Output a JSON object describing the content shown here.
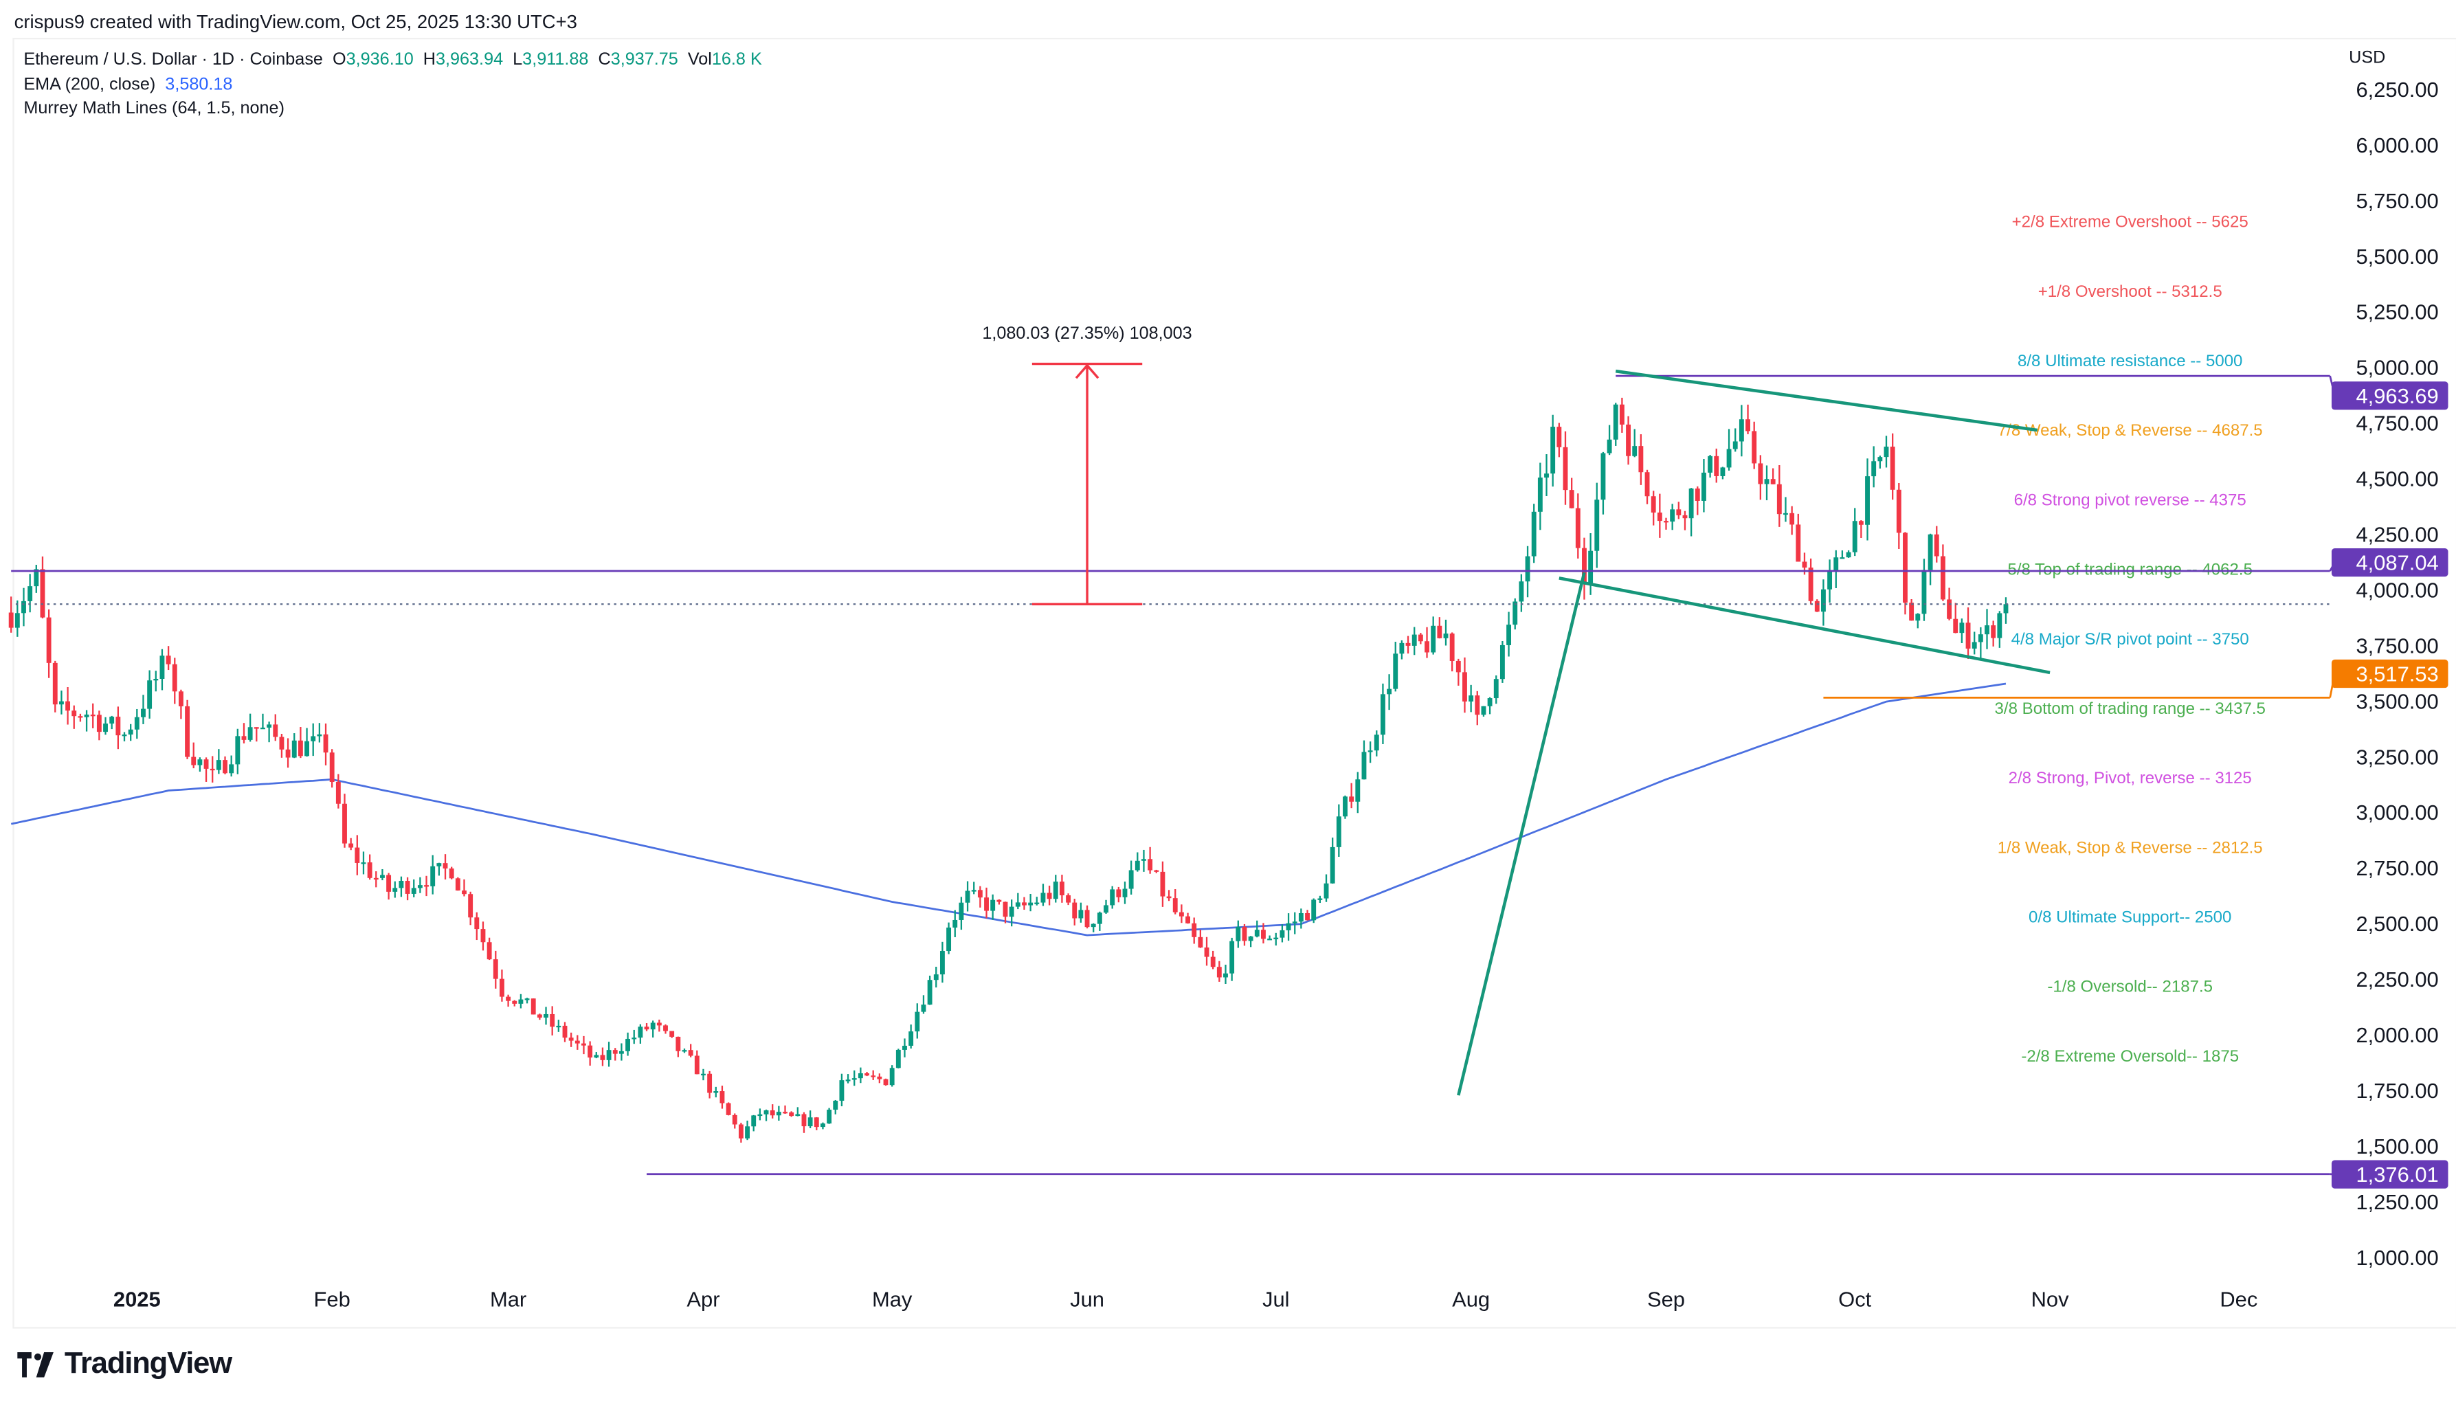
{
  "header": {
    "credit": "crispus9 created with TradingView.com, Oct 25, 2025 13:30 UTC+3",
    "symbol": "Ethereum / U.S. Dollar · 1D · Coinbase",
    "ohlcv": {
      "o_label": "O",
      "o": "3,936.10",
      "h_label": "H",
      "h": "3,963.94",
      "l_label": "L",
      "l": "3,911.88",
      "c_label": "C",
      "c": "3,937.75",
      "vol_label": "Vol",
      "vol": "16.8 K"
    },
    "indicators": [
      {
        "name": "EMA (200, close)",
        "value": "3,580.18"
      },
      {
        "name": "Murrey Math Lines (64, 1.5, none)"
      }
    ],
    "currency": "USD"
  },
  "logo": {
    "text": "TradingView"
  },
  "chart_data": {
    "type": "candlestick",
    "ylim": [
      900,
      6350
    ],
    "y_ticks": [
      1000,
      1250,
      1500,
      1750,
      2000,
      2250,
      2500,
      2750,
      3000,
      3250,
      3500,
      3750,
      4000,
      4250,
      4500,
      4750,
      5000,
      5250,
      5500,
      5750,
      6000,
      6250
    ],
    "x_ticks": [
      {
        "label": "2025",
        "date": "2025-01-01",
        "bold": true
      },
      {
        "label": "Feb",
        "date": "2025-02-01"
      },
      {
        "label": "Mar",
        "date": "2025-03-01"
      },
      {
        "label": "Apr",
        "date": "2025-04-01"
      },
      {
        "label": "May",
        "date": "2025-05-01"
      },
      {
        "label": "Jun",
        "date": "2025-06-01"
      },
      {
        "label": "Jul",
        "date": "2025-07-01"
      },
      {
        "label": "Aug",
        "date": "2025-08-01"
      },
      {
        "label": "Sep",
        "date": "2025-09-01"
      },
      {
        "label": "Oct",
        "date": "2025-10-01"
      },
      {
        "label": "Nov",
        "date": "2025-11-01"
      },
      {
        "label": "Dec",
        "date": "2025-12-01"
      }
    ],
    "xlim": [
      "2024-12-12",
      "2025-12-25"
    ],
    "colors": {
      "up": "#089981",
      "down": "#f23645",
      "ema": "#4a6fe0",
      "purple": "#673ab7",
      "orange": "#f57c00",
      "trend": "#16967a",
      "measure": "#f23645"
    },
    "price_path": [
      [
        "2024-12-12",
        3900
      ],
      [
        "2024-12-16",
        4050
      ],
      [
        "2024-12-19",
        3450
      ],
      [
        "2024-12-24",
        3450
      ],
      [
        "2024-12-30",
        3350
      ],
      [
        "2025-01-06",
        3700
      ],
      [
        "2025-01-09",
        3300
      ],
      [
        "2025-01-13",
        3150
      ],
      [
        "2025-01-19",
        3400
      ],
      [
        "2025-01-25",
        3300
      ],
      [
        "2025-01-31",
        3300
      ],
      [
        "2025-02-03",
        2850
      ],
      [
        "2025-02-10",
        2650
      ],
      [
        "2025-02-20",
        2750
      ],
      [
        "2025-02-24",
        2500
      ],
      [
        "2025-02-28",
        2200
      ],
      [
        "2025-03-03",
        2150
      ],
      [
        "2025-03-10",
        2000
      ],
      [
        "2025-03-15",
        1880
      ],
      [
        "2025-03-24",
        2050
      ],
      [
        "2025-03-31",
        1850
      ],
      [
        "2025-04-07",
        1550
      ],
      [
        "2025-04-10",
        1650
      ],
      [
        "2025-04-20",
        1600
      ],
      [
        "2025-04-23",
        1800
      ],
      [
        "2025-04-30",
        1800
      ],
      [
        "2025-05-08",
        2300
      ],
      [
        "2025-05-10",
        2500
      ],
      [
        "2025-05-13",
        2620
      ],
      [
        "2025-05-20",
        2550
      ],
      [
        "2025-05-27",
        2650
      ],
      [
        "2025-06-01",
        2500
      ],
      [
        "2025-06-10",
        2780
      ],
      [
        "2025-06-15",
        2550
      ],
      [
        "2025-06-22",
        2250
      ],
      [
        "2025-06-25",
        2450
      ],
      [
        "2025-07-01",
        2450
      ],
      [
        "2025-07-08",
        2600
      ],
      [
        "2025-07-11",
        2950
      ],
      [
        "2025-07-17",
        3400
      ],
      [
        "2025-07-20",
        3700
      ],
      [
        "2025-07-28",
        3800
      ],
      [
        "2025-08-02",
        3400
      ],
      [
        "2025-08-08",
        3900
      ],
      [
        "2025-08-11",
        4300
      ],
      [
        "2025-08-14",
        4700
      ],
      [
        "2025-08-19",
        4100
      ],
      [
        "2025-08-24",
        4850
      ],
      [
        "2025-08-27",
        4600
      ],
      [
        "2025-09-01",
        4300
      ],
      [
        "2025-09-13",
        4700
      ],
      [
        "2025-09-22",
        4200
      ],
      [
        "2025-09-25",
        3900
      ],
      [
        "2025-10-01",
        4300
      ],
      [
        "2025-10-06",
        4650
      ],
      [
        "2025-10-10",
        3800
      ],
      [
        "2025-10-13",
        4200
      ],
      [
        "2025-10-17",
        3800
      ],
      [
        "2025-10-22",
        3800
      ],
      [
        "2025-10-25",
        3937.75
      ]
    ],
    "ema_path": [
      [
        "2024-12-12",
        2950
      ],
      [
        "2025-01-06",
        3100
      ],
      [
        "2025-02-01",
        3150
      ],
      [
        "2025-03-15",
        2900
      ],
      [
        "2025-05-01",
        2600
      ],
      [
        "2025-06-01",
        2450
      ],
      [
        "2025-07-05",
        2500
      ],
      [
        "2025-08-01",
        2800
      ],
      [
        "2025-09-01",
        3150
      ],
      [
        "2025-10-06",
        3500
      ],
      [
        "2025-10-25",
        3580.18
      ]
    ],
    "murrey_lines": [
      {
        "label": "+2/8 Extreme Overshoot --  5625",
        "price": 5625,
        "color": "#f0555a"
      },
      {
        "label": "+1/8 Overshoot --  5312.5",
        "price": 5312.5,
        "color": "#f0555a"
      },
      {
        "label": "8/8 Ultimate resistance --  5000",
        "price": 5000,
        "color": "#18a9c9"
      },
      {
        "label": "7/8 Weak, Stop & Reverse --  4687.5",
        "price": 4687.5,
        "color": "#f0a020"
      },
      {
        "label": "6/8 Strong pivot reverse --  4375",
        "price": 4375,
        "color": "#d050e0"
      },
      {
        "label": "5/8 Top of trading range --  4062.5",
        "price": 4062.5,
        "color": "#4caf50"
      },
      {
        "label": "4/8 Major S/R pivot point --  3750",
        "price": 3750,
        "color": "#18a9c9"
      },
      {
        "label": "3/8 Bottom of trading range --  3437.5",
        "price": 3437.5,
        "color": "#4caf50"
      },
      {
        "label": "2/8 Strong, Pivot, reverse --  3125",
        "price": 3125,
        "color": "#d050e0"
      },
      {
        "label": "1/8 Weak, Stop & Reverse --  2812.5",
        "price": 2812.5,
        "color": "#f0a020"
      },
      {
        "label": "0/8 Ultimate Support--  2500",
        "price": 2500,
        "color": "#18a9c9"
      },
      {
        "label": "-1/8 Oversold--  2187.5",
        "price": 2187.5,
        "color": "#4caf50"
      },
      {
        "label": "-2/8 Extreme Oversold--  1875",
        "price": 1875,
        "color": "#4caf50"
      }
    ],
    "horizontal_levels": [
      {
        "price": 4963.69,
        "label": "4,963.69",
        "color": "#673ab7",
        "from": "2025-08-24"
      },
      {
        "price": 4087.04,
        "label": "4,087.04",
        "color": "#673ab7",
        "from": "2024-12-12"
      },
      {
        "price": 3517.53,
        "label": "3,517.53",
        "color": "#f57c00",
        "from": "2025-09-26"
      },
      {
        "price": 1376.01,
        "label": "1,376.01",
        "color": "#673ab7",
        "from": "2025-03-23"
      }
    ],
    "last_price": 3937.75,
    "measure": {
      "date": "2025-06-01",
      "from": 3937.75,
      "to": 5017.78,
      "label": "1,080.03 (27.35%) 108,003"
    },
    "trend_lines": [
      [
        [
          "2025-08-24",
          4985
        ],
        [
          "2025-10-30",
          4720
        ]
      ],
      [
        [
          "2025-08-15",
          4055
        ],
        [
          "2025-11-01",
          3630
        ]
      ],
      [
        [
          "2025-07-30",
          1730
        ],
        [
          "2025-08-19",
          4080
        ]
      ]
    ]
  }
}
